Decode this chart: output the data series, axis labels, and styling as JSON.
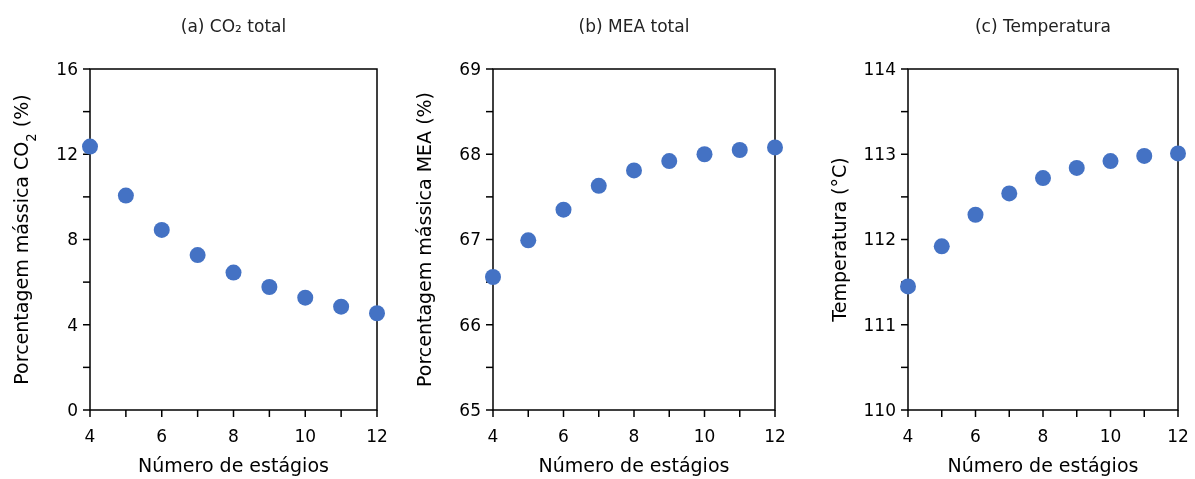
{
  "chart_data": [
    {
      "type": "scatter",
      "title": "(a) CO₂ total",
      "xlabel": "Número de estágios",
      "ylabel": "Porcentagem mássica CO$_{2}$ (%)",
      "x": [
        4,
        5,
        6,
        7,
        8,
        9,
        10,
        11,
        12
      ],
      "series": [
        {
          "color": "#4472c4",
          "values": [
            12.36,
            10.06,
            8.45,
            7.27,
            6.45,
            5.77,
            5.27,
            4.85,
            4.54
          ]
        }
      ],
      "xlim": [
        4,
        12
      ],
      "xticks": [
        4,
        {
          "value": 5,
          "label": null
        },
        6,
        {
          "value": 7,
          "label": null
        },
        8,
        {
          "value": 9,
          "label": null
        },
        10,
        {
          "value": 11,
          "label": null
        },
        12
      ],
      "ylim": [
        0,
        16
      ],
      "yticks": [
        0,
        {
          "value": 2,
          "label": null
        },
        4,
        {
          "value": 6,
          "label": null
        },
        8,
        {
          "value": 10,
          "label": null
        },
        12,
        {
          "value": 14,
          "label": null
        },
        16
      ],
      "marker": "circle",
      "grid": false
    },
    {
      "type": "scatter",
      "title": "(b) MEA total",
      "xlabel": "Número de estágios",
      "ylabel": "Porcentagem mássica MEA (%)",
      "x": [
        4,
        5,
        6,
        7,
        8,
        9,
        10,
        11,
        12
      ],
      "series": [
        {
          "color": "#4472c4",
          "values": [
            66.56,
            66.99,
            67.35,
            67.63,
            67.81,
            67.92,
            68.0,
            68.05,
            68.08
          ]
        }
      ],
      "xlim": [
        4,
        12
      ],
      "xticks": [
        4,
        {
          "value": 5,
          "label": null
        },
        6,
        {
          "value": 7,
          "label": null
        },
        8,
        {
          "value": 9,
          "label": null
        },
        10,
        {
          "value": 11,
          "label": null
        },
        12
      ],
      "ylim": [
        65,
        69
      ],
      "yticks": [
        65,
        {
          "value": 65.5,
          "label": null
        },
        66,
        {
          "value": 66.5,
          "label": null
        },
        67,
        {
          "value": 67.5,
          "label": null
        },
        68,
        {
          "value": 68.5,
          "label": null
        },
        69
      ],
      "marker": "circle",
      "grid": false
    },
    {
      "type": "scatter",
      "title": "(c) Temperatura",
      "xlabel": "Número de estágios",
      "ylabel": "Temperatura (°C)",
      "x": [
        4,
        5,
        6,
        7,
        8,
        9,
        10,
        11,
        12
      ],
      "series": [
        {
          "color": "#4472c4",
          "values": [
            111.45,
            111.92,
            112.29,
            112.54,
            112.72,
            112.84,
            112.92,
            112.98,
            113.01
          ]
        }
      ],
      "xlim": [
        4,
        12
      ],
      "xticks": [
        4,
        {
          "value": 5,
          "label": null
        },
        6,
        {
          "value": 7,
          "label": null
        },
        8,
        {
          "value": 9,
          "label": null
        },
        10,
        {
          "value": 11,
          "label": null
        },
        12
      ],
      "ylim": [
        110,
        114
      ],
      "yticks": [
        110,
        {
          "value": 110.5,
          "label": null
        },
        111,
        {
          "value": 111.5,
          "label": null
        },
        112,
        {
          "value": 112.5,
          "label": null
        },
        113,
        {
          "value": 113.5,
          "label": null
        },
        114
      ],
      "marker": "circle",
      "grid": false
    }
  ]
}
